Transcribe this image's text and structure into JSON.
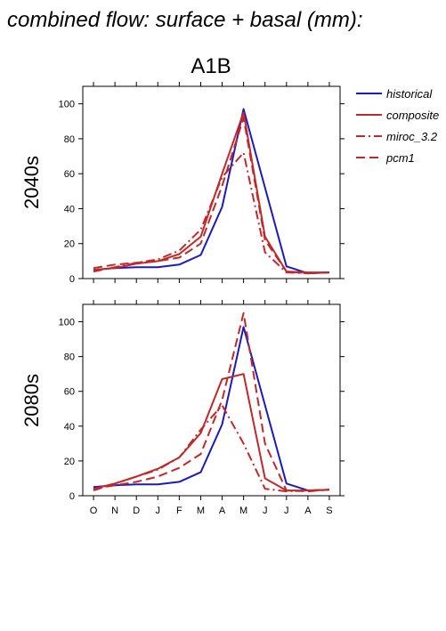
{
  "header": "combined flow: surface + basal (mm):",
  "scenario": "A1B",
  "legend": [
    {
      "name": "historical",
      "color": "#1a1ac0",
      "dash": "solid"
    },
    {
      "name": "composite",
      "color": "#c0282a",
      "dash": "solid"
    },
    {
      "name": "miroc_3.2",
      "color": "#c0282a",
      "dash": "dashdot"
    },
    {
      "name": "pcm1",
      "color": "#c0282a",
      "dash": "dash"
    }
  ],
  "chart_data": [
    {
      "type": "line",
      "panel_label": "2040s",
      "categories": [
        "O",
        "N",
        "D",
        "J",
        "F",
        "M",
        "A",
        "M",
        "J",
        "J",
        "A",
        "S"
      ],
      "ylim": [
        0,
        110
      ],
      "yticks": [
        0,
        20,
        40,
        60,
        80,
        100
      ],
      "show_x_tick_labels": false,
      "series": [
        {
          "name": "historical",
          "values": [
            5,
            6,
            6.5,
            6.5,
            8,
            13.5,
            41,
            97,
            52,
            7,
            3,
            3.5
          ]
        },
        {
          "name": "composite",
          "values": [
            5,
            6,
            8.5,
            10,
            14,
            24,
            60,
            95,
            24,
            4,
            3.5,
            3.5
          ]
        },
        {
          "name": "miroc_3.2",
          "values": [
            4,
            6.5,
            9,
            11,
            16,
            28,
            58,
            72,
            15,
            3.5,
            3,
            3.5
          ]
        },
        {
          "name": "pcm1",
          "values": [
            6,
            8,
            9,
            10,
            12,
            20,
            53,
            92,
            22,
            4,
            3,
            3.5
          ]
        }
      ]
    },
    {
      "type": "line",
      "panel_label": "2080s",
      "categories": [
        "O",
        "N",
        "D",
        "J",
        "F",
        "M",
        "A",
        "M",
        "J",
        "J",
        "A",
        "S"
      ],
      "ylim": [
        0,
        110
      ],
      "yticks": [
        0,
        20,
        40,
        60,
        80,
        100
      ],
      "show_x_tick_labels": true,
      "series": [
        {
          "name": "historical",
          "values": [
            5,
            6,
            6.5,
            6.5,
            8,
            13.5,
            41,
            97,
            52,
            7,
            3,
            3.5
          ]
        },
        {
          "name": "composite",
          "values": [
            4,
            7,
            11,
            15.5,
            22,
            36,
            67,
            70,
            10,
            3,
            3,
            3.5
          ]
        },
        {
          "name": "miroc_3.2",
          "values": [
            3,
            7,
            11,
            15,
            22,
            38,
            52,
            30,
            4,
            2.5,
            3,
            3.5
          ]
        },
        {
          "name": "pcm1",
          "values": [
            4,
            6,
            8,
            11,
            16,
            24,
            55,
            105,
            30,
            3,
            2.5,
            3.5
          ]
        }
      ]
    }
  ]
}
